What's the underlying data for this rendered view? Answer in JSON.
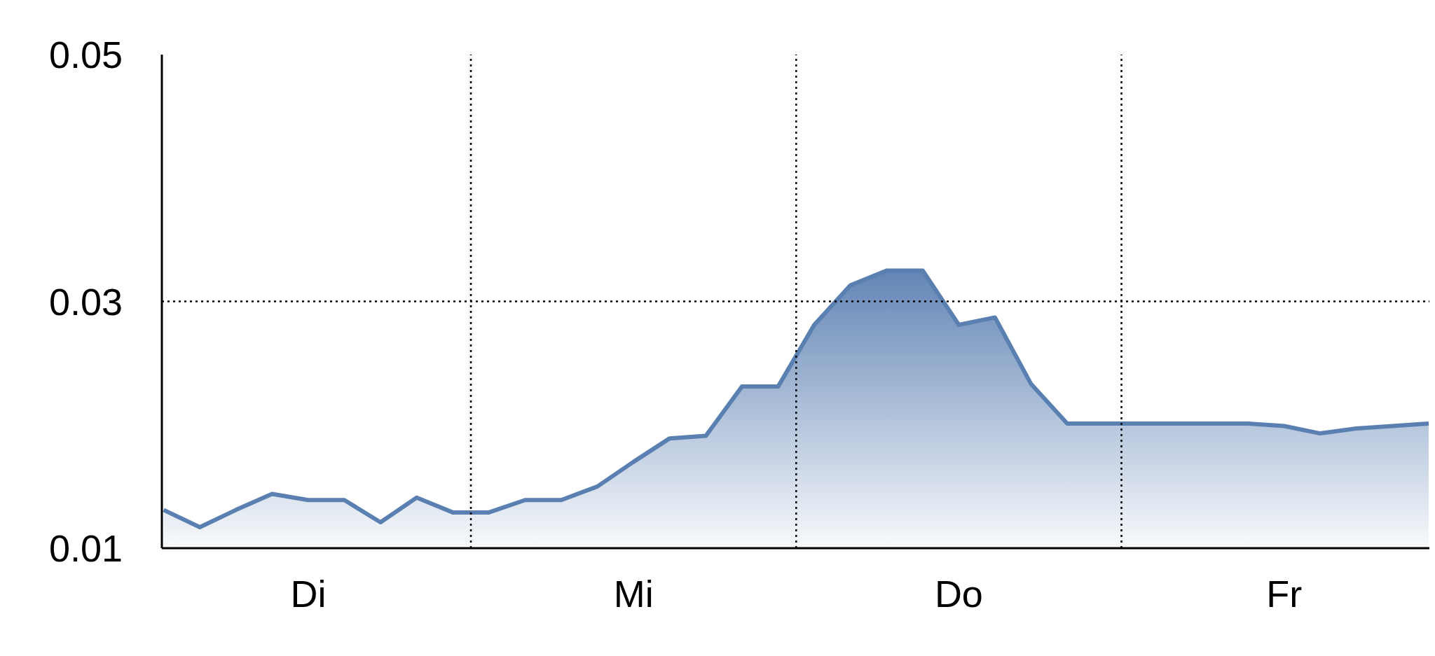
{
  "chart_data": {
    "type": "area",
    "categories": [
      null,
      null,
      null,
      null,
      "Di",
      null,
      null,
      null,
      null,
      null,
      null,
      null,
      null,
      "Mi",
      null,
      null,
      null,
      null,
      null,
      null,
      null,
      null,
      "Do",
      null,
      null,
      null,
      null,
      null,
      null,
      null,
      null,
      "Fr",
      null,
      null,
      null,
      null
    ],
    "series": [
      {
        "color": "#5a7fb1",
        "values": [
          0.0131,
          0.0117,
          0.0131,
          0.0144,
          0.0139,
          0.0139,
          0.0121,
          0.0141,
          0.0129,
          0.0129,
          0.0139,
          0.0139,
          0.015,
          0.017,
          0.0189,
          0.0191,
          0.0231,
          0.0231,
          0.0281,
          0.0313,
          0.0325,
          0.0325,
          0.0281,
          0.0287,
          0.0233,
          0.0201,
          0.0201,
          0.0201,
          0.0201,
          0.0201,
          0.0201,
          0.0199,
          0.0193,
          0.0197,
          0.0199,
          0.0201
        ]
      }
    ],
    "ylim": [
      0.01,
      0.05
    ],
    "yticks": [
      0.01,
      0.03,
      0.05
    ],
    "grid": "x",
    "legend": false,
    "marker": "none",
    "ref_lines": [
      {
        "axis": "y",
        "value": 0.03,
        "line_style": "dotted",
        "color": "#000000"
      }
    ]
  }
}
